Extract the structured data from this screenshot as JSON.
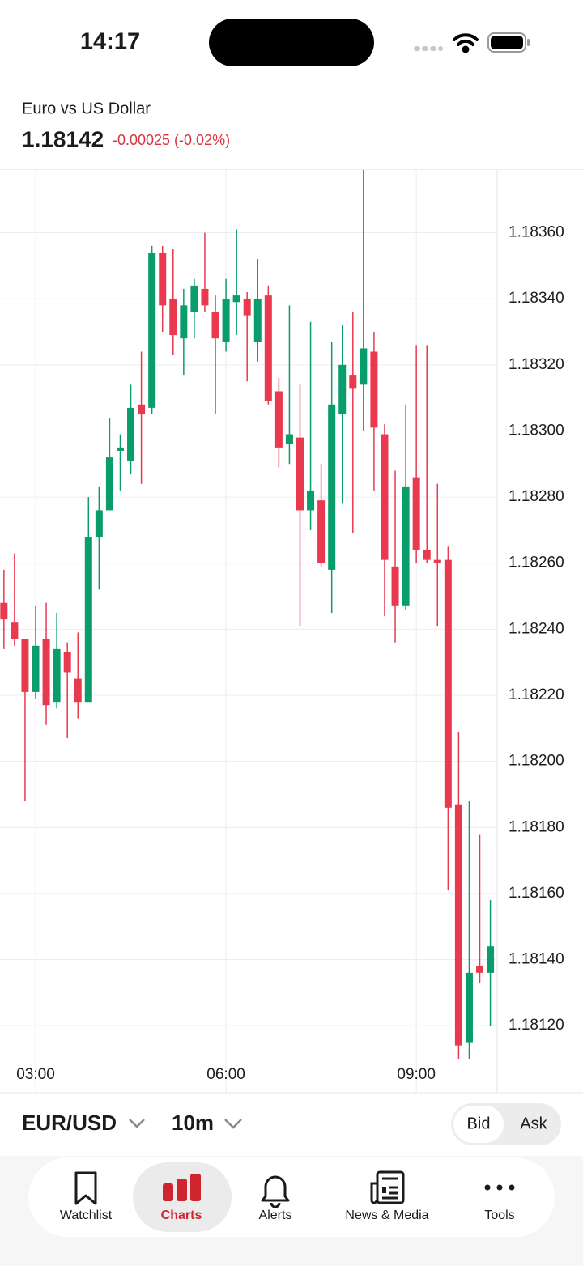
{
  "status_bar": {
    "time": "14:17"
  },
  "header": {
    "title": "Euro vs US Dollar",
    "price": "1.18142",
    "change": "-0.00025 (-0.02%)"
  },
  "chart_data": {
    "type": "candlestick",
    "categories": [
      null,
      null,
      null,
      "03:00",
      null,
      null,
      null,
      null,
      null,
      null,
      null,
      null,
      null,
      null,
      null,
      null,
      null,
      null,
      null,
      null,
      null,
      "06:00",
      null,
      null,
      null,
      null,
      null,
      null,
      null,
      null,
      null,
      null,
      null,
      null,
      null,
      null,
      null,
      null,
      null,
      "09:00",
      null,
      null,
      null,
      null,
      null,
      null,
      null
    ],
    "open": [
      1.18248,
      1.18242,
      1.18237,
      1.18221,
      1.18237,
      1.18218,
      1.18233,
      1.18225,
      1.18218,
      1.18268,
      1.18276,
      1.18294,
      1.18291,
      1.18308,
      1.18307,
      1.18354,
      1.1834,
      1.18328,
      1.18336,
      1.18343,
      1.18336,
      1.18327,
      1.18339,
      1.1834,
      1.18327,
      1.18341,
      1.18312,
      1.18296,
      1.18298,
      1.18276,
      1.18279,
      1.18258,
      1.18305,
      1.18317,
      1.18314,
      1.18324,
      1.18299,
      1.18259,
      1.18247,
      1.18286,
      1.18264,
      1.18261,
      1.18261,
      1.18187,
      1.18115,
      1.18138,
      1.18136
    ],
    "high": [
      1.18258,
      1.18263,
      1.18237,
      1.18247,
      1.18248,
      1.18245,
      1.18236,
      1.18239,
      1.1828,
      1.18283,
      1.18304,
      1.18299,
      1.18314,
      1.18324,
      1.18356,
      1.18356,
      1.18355,
      1.18343,
      1.18346,
      1.1836,
      1.18341,
      1.18346,
      1.18361,
      1.18342,
      1.18352,
      1.18344,
      1.18316,
      1.18338,
      1.18314,
      1.18333,
      1.1829,
      1.18327,
      1.18332,
      1.18336,
      1.1838,
      1.1833,
      1.18302,
      1.18288,
      1.18308,
      1.18326,
      1.18326,
      1.18284,
      1.18265,
      1.18209,
      1.18188,
      1.18178,
      1.18158
    ],
    "low": [
      1.18234,
      1.18235,
      1.18188,
      1.18219,
      1.18211,
      1.18216,
      1.18207,
      1.18213,
      1.18218,
      1.18252,
      1.18276,
      1.18282,
      1.18287,
      1.18284,
      1.18305,
      1.1833,
      1.18323,
      1.18317,
      1.18328,
      1.18336,
      1.18305,
      1.18324,
      1.18329,
      1.18315,
      1.18321,
      1.18308,
      1.18289,
      1.1829,
      1.18241,
      1.1827,
      1.18259,
      1.18245,
      1.18278,
      1.18269,
      1.183,
      1.18282,
      1.18244,
      1.18236,
      1.18246,
      1.1826,
      1.1826,
      1.18241,
      1.18161,
      1.1811,
      1.1811,
      1.18133,
      1.1812
    ],
    "close": [
      1.18243,
      1.18237,
      1.18221,
      1.18235,
      1.18217,
      1.18234,
      1.18227,
      1.18218,
      1.18268,
      1.18276,
      1.18292,
      1.18295,
      1.18307,
      1.18305,
      1.18354,
      1.18338,
      1.18329,
      1.18338,
      1.18344,
      1.18338,
      1.18328,
      1.1834,
      1.18341,
      1.18335,
      1.1834,
      1.18309,
      1.18295,
      1.18299,
      1.18276,
      1.18282,
      1.1826,
      1.18308,
      1.1832,
      1.18313,
      1.18325,
      1.18301,
      1.18261,
      1.18247,
      1.18283,
      1.18264,
      1.18261,
      1.1826,
      1.18186,
      1.18114,
      1.18136,
      1.18136,
      1.18144
    ],
    "up_color": "#0a9d6c",
    "down_color": "#e8394f",
    "ylim": [
      1.1811,
      1.18379
    ],
    "yticks": [
      {
        "value": 1.1836,
        "label": "1.18360"
      },
      {
        "value": 1.1834,
        "label": "1.18340"
      },
      {
        "value": 1.1832,
        "label": "1.18320"
      },
      {
        "value": 1.183,
        "label": "1.18300"
      },
      {
        "value": 1.1828,
        "label": "1.18280"
      },
      {
        "value": 1.1826,
        "label": "1.18260"
      },
      {
        "value": 1.1824,
        "label": "1.18240"
      },
      {
        "value": 1.1822,
        "label": "1.18220"
      },
      {
        "value": 1.182,
        "label": "1.18200"
      },
      {
        "value": 1.1818,
        "label": "1.18180"
      },
      {
        "value": 1.1816,
        "label": "1.18160"
      },
      {
        "value": 1.1814,
        "label": "1.18140"
      },
      {
        "value": 1.1812,
        "label": "1.18120"
      }
    ],
    "grid": true
  },
  "toolbar": {
    "symbol": "EUR/USD",
    "interval": "10m",
    "bid": "Bid",
    "ask": "Ask"
  },
  "nav": {
    "items": [
      "Watchlist",
      "Charts",
      "Alerts",
      "News & Media",
      "Tools"
    ]
  }
}
